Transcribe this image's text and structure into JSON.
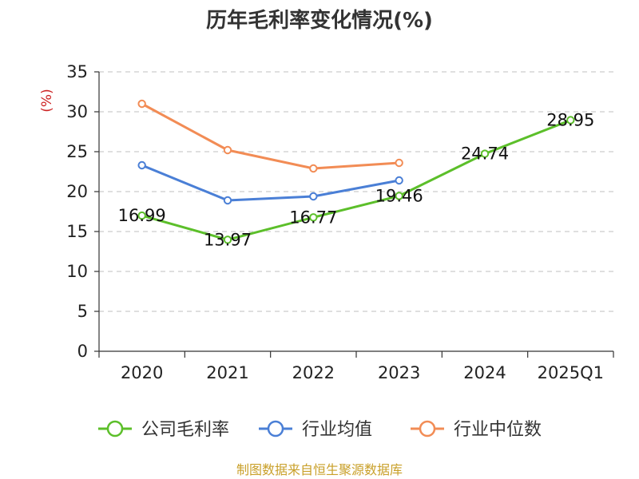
{
  "chart_data": {
    "type": "line",
    "title": "历年毛利率变化情况(%)",
    "ylabel": "(%)",
    "xlabel": "",
    "categories": [
      "2020",
      "2021",
      "2022",
      "2023",
      "2024",
      "2025Q1"
    ],
    "ylim": [
      0,
      35
    ],
    "yticks": [
      0,
      5,
      10,
      15,
      20,
      25,
      30,
      35
    ],
    "grid": true,
    "legend_position": "bottom",
    "series": [
      {
        "name": "公司毛利率",
        "color": "#5cbf2a",
        "values": [
          16.99,
          13.97,
          16.77,
          19.46,
          24.74,
          28.95
        ],
        "labels": [
          "16.99",
          "13.97",
          "16.77",
          "19.46",
          "24.74",
          "28.95"
        ],
        "show_labels": true
      },
      {
        "name": "行业均值",
        "color": "#4a7fd6",
        "values": [
          23.3,
          18.9,
          19.4,
          21.4,
          null,
          null
        ],
        "show_labels": false
      },
      {
        "name": "行业中位数",
        "color": "#f28c55",
        "values": [
          31.0,
          25.2,
          22.9,
          23.6,
          null,
          null
        ],
        "show_labels": false
      }
    ],
    "source": "制图数据来自恒生聚源数据库",
    "source_color": "#c9a02a",
    "unit_color": "#cc2222"
  }
}
